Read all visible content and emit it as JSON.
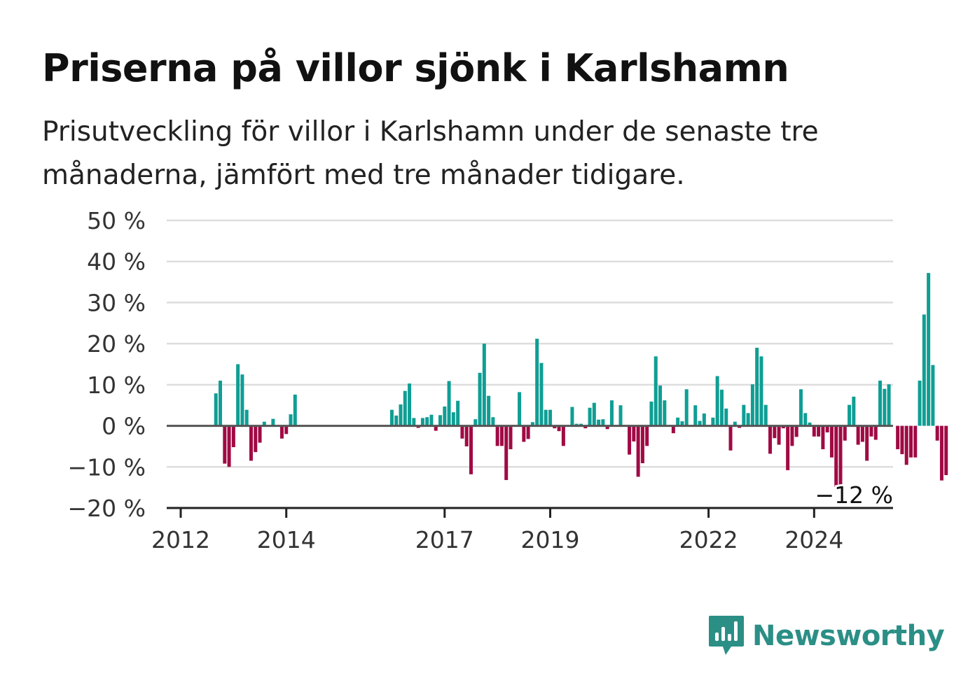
{
  "title": "Priserna på villor sjönk i Karlshamn",
  "subtitle": "Prisutveckling för villor i Karlshamn under de senaste tre månaderna, jämfört med tre månader tidigare.",
  "brand": {
    "name": "Newsworthy",
    "icon": "newsworthy-logo-icon",
    "color": "#2b8f86"
  },
  "colors": {
    "positive": "#0f9e94",
    "negative": "#a00a44",
    "grid": "#dddddd",
    "zero": "#555555",
    "axis": "#222222"
  },
  "chart_data": {
    "type": "bar",
    "x_unit": "month",
    "ylim": [
      -20,
      50
    ],
    "yticks": [
      50,
      40,
      30,
      20,
      10,
      0,
      -10,
      -20
    ],
    "ytick_labels": [
      "50 %",
      "40 %",
      "30 %",
      "20 %",
      "10 %",
      "0 %",
      "−10 %",
      "−20 %"
    ],
    "xticks": [
      "2012",
      "2014",
      "2017",
      "2019",
      "2022",
      "2024"
    ],
    "grid": true,
    "last_label": "−12 %",
    "start": "2012-01",
    "end": "2025-05",
    "values": [
      0,
      0,
      0,
      0,
      0,
      0,
      0,
      0,
      7.9,
      11,
      -9.2,
      -10,
      -5.2,
      15,
      12.5,
      3.9,
      -8.5,
      -6.4,
      -4.1,
      1,
      0,
      1.7,
      0,
      -3.1,
      -2,
      2.8,
      7.6,
      0,
      0,
      0,
      0,
      0,
      0,
      0,
      0,
      0,
      0,
      0,
      0,
      0,
      0,
      0,
      0,
      0,
      0,
      0,
      0,
      0,
      3.9,
      2.5,
      5.2,
      8.5,
      10.3,
      1.9,
      -0.5,
      1.9,
      2.1,
      2.7,
      -1.2,
      2.6,
      4.7,
      10.9,
      3.3,
      6.1,
      -3.1,
      -5,
      -11.8,
      1.6,
      12.9,
      20,
      7.3,
      2.1,
      -4.9,
      -4.9,
      -13.2,
      -5.7,
      0,
      8.2,
      -3.9,
      -3.2,
      0.9,
      21.2,
      15.3,
      3.9,
      3.9,
      -0.6,
      -1.3,
      -4.9,
      0,
      4.6,
      0.5,
      0.5,
      -0.6,
      4.4,
      5.6,
      1.5,
      1.6,
      -0.8,
      6.2,
      0,
      5,
      0,
      -7,
      -3.8,
      -12.4,
      -9.1,
      -4.9,
      5.9,
      16.9,
      9.8,
      6.2,
      0,
      -1.8,
      2,
      1.1,
      8.9,
      0,
      5,
      1.2,
      3,
      0,
      2,
      12.1,
      8.8,
      4.2,
      -6,
      1,
      -0.5,
      5.1,
      3.1,
      10.1,
      19,
      16.9,
      5.1,
      -6.8,
      -3,
      -4.6,
      -0.6,
      -10.8,
      -4.9,
      -2.7,
      8.9,
      3.1,
      0.8,
      -2.6,
      -2.6,
      -5.7,
      -1.6,
      -7.7,
      -14.9,
      -15.9,
      -3.6,
      5.1,
      7.1,
      -4.6,
      -3.9,
      -8.5,
      -2.6,
      -3.4,
      11,
      9,
      10.1,
      0,
      -5.7,
      -6.9,
      -9.5,
      -7.7,
      -7.7,
      11,
      27.1,
      37.2,
      14.8,
      -3.6,
      -13.3,
      -12
    ]
  }
}
